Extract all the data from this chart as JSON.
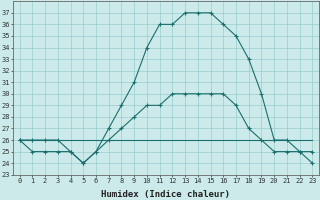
{
  "xlabel": "Humidex (Indice chaleur)",
  "bg_color": "#cceaea",
  "grid_color": "#99cccc",
  "line_color": "#1a6e6e",
  "hours": [
    0,
    1,
    2,
    3,
    4,
    5,
    6,
    7,
    8,
    9,
    10,
    11,
    12,
    13,
    14,
    15,
    16,
    17,
    18,
    19,
    20,
    21,
    22,
    23
  ],
  "line1": [
    26,
    26,
    26,
    26,
    25,
    24,
    25,
    27,
    29,
    31,
    34,
    36,
    36,
    37,
    37,
    37,
    36,
    35,
    33,
    30,
    26,
    26,
    25,
    24
  ],
  "line2": [
    26,
    25,
    25,
    25,
    25,
    24,
    25,
    26,
    27,
    28,
    29,
    29,
    30,
    30,
    30,
    30,
    30,
    29,
    27,
    26,
    25,
    25,
    25,
    25
  ],
  "line3": [
    26,
    26,
    26,
    26,
    26,
    26,
    26,
    26,
    26,
    26,
    26,
    26,
    26,
    26,
    26,
    26,
    26,
    26,
    26,
    26,
    26,
    26,
    26,
    26
  ],
  "ylim": [
    23,
    38
  ],
  "yticks": [
    23,
    24,
    25,
    26,
    27,
    28,
    29,
    30,
    31,
    32,
    33,
    34,
    35,
    36,
    37
  ],
  "xticks": [
    0,
    1,
    2,
    3,
    4,
    5,
    6,
    7,
    8,
    9,
    10,
    11,
    12,
    13,
    14,
    15,
    16,
    17,
    18,
    19,
    20,
    21,
    22,
    23
  ]
}
